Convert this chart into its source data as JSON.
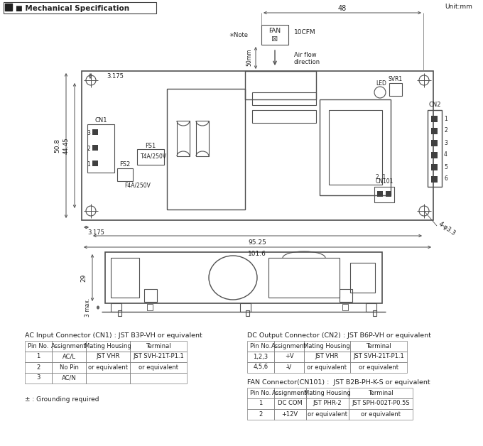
{
  "title": "Mechanical Specification",
  "unit": "Unit:mm",
  "bg_color": "#ffffff",
  "lc": "#505050",
  "ac_connector": {
    "title": "AC Input Connector (CN1) : JST B3P-VH or equivalent",
    "headers": [
      "Pin No.",
      "Assignment",
      "Mating Housing",
      "Terminal"
    ],
    "rows": [
      [
        "1",
        "AC/L",
        "JST VHR",
        "JST SVH-21T-P1.1"
      ],
      [
        "2",
        "No Pin",
        "or equivalent",
        "or equivalent"
      ],
      [
        "3",
        "AC/N",
        "",
        ""
      ]
    ],
    "note": "± : Grounding required"
  },
  "dc_connector": {
    "title": "DC Output Connector (CN2) : JST B6P-VH or equivalent",
    "headers": [
      "Pin No.",
      "Assignment",
      "Mating Housing",
      "Terminal"
    ],
    "rows": [
      [
        "1,2,3",
        "+V",
        "JST VHR",
        "JST SVH-21T-P1.1"
      ],
      [
        "4,5,6",
        "-V",
        "or equivalent",
        "or equivalent"
      ]
    ]
  },
  "fan_connector": {
    "title": "FAN Connector(CN101) :  JST B2B-PH-K-S or equivalent",
    "headers": [
      "Pin No.",
      "Assignment",
      "Mating Housing",
      "Terminal"
    ],
    "rows": [
      [
        "1",
        "DC COM",
        "JST PHR-2",
        "JST SPH-002T-P0.5S"
      ],
      [
        "2",
        "+12V",
        "or equivalent",
        "or equivalent"
      ]
    ]
  }
}
